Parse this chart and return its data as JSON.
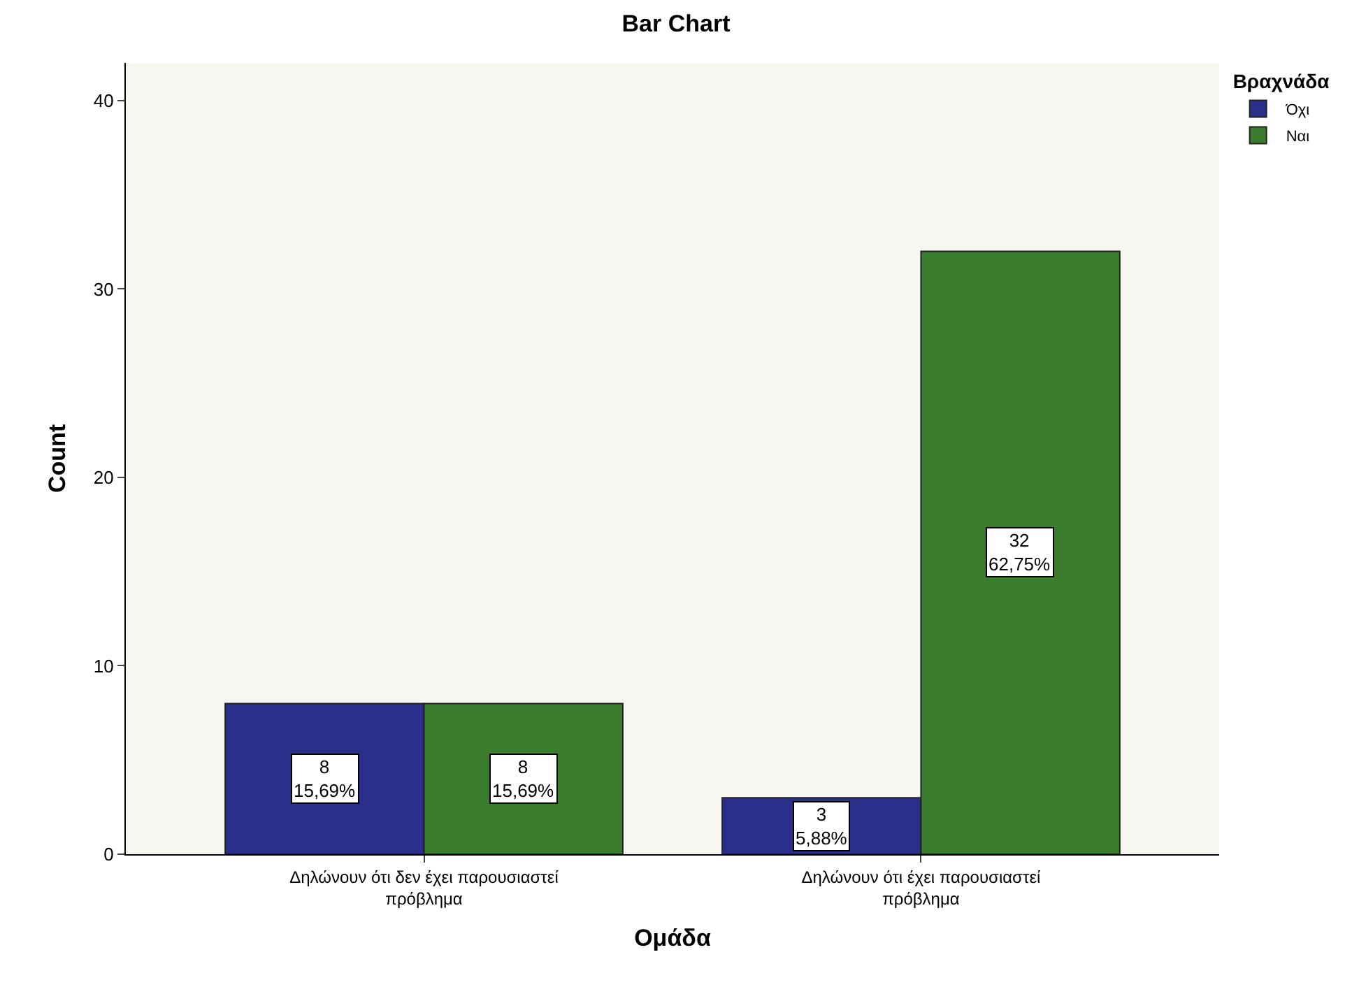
{
  "chart_data": {
    "type": "bar",
    "title": "Bar Chart",
    "xlabel": "Ομάδα",
    "ylabel": "Count",
    "legend_title": "Βραχνάδα",
    "categories": [
      "Δηλώνουν ότι δεν έχει παρουσιαστεί πρόβλημα",
      "Δηλώνουν ότι έχει παρουσιαστεί πρόβλημα"
    ],
    "series": [
      {
        "name": "Όχι",
        "color": "#2b2f8c",
        "values": [
          8,
          3
        ],
        "value_labels": [
          "8\n15,69%",
          "3\n5,88%"
        ]
      },
      {
        "name": "Ναι",
        "color": "#3b7d2e",
        "values": [
          8,
          32
        ],
        "value_labels": [
          "8\n15,69%",
          "32\n62,75%"
        ]
      }
    ],
    "ylim": [
      0,
      42
    ],
    "yticks": [
      0,
      10,
      20,
      30,
      40
    ],
    "grid": false,
    "legend": "top right"
  }
}
